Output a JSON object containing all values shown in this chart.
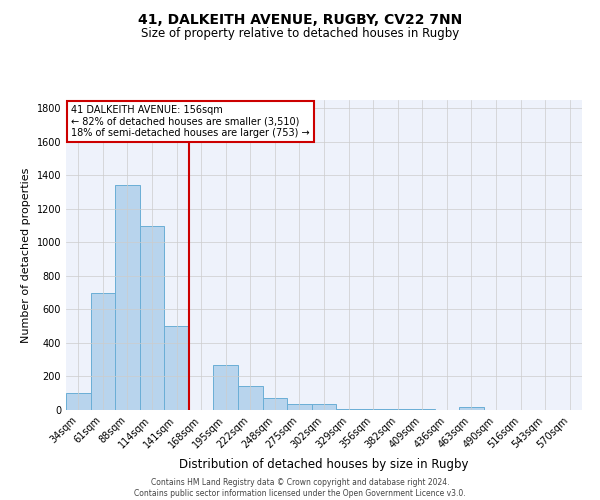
{
  "title1": "41, DALKEITH AVENUE, RUGBY, CV22 7NN",
  "title2": "Size of property relative to detached houses in Rugby",
  "xlabel": "Distribution of detached houses by size in Rugby",
  "ylabel": "Number of detached properties",
  "categories": [
    "34sqm",
    "61sqm",
    "88sqm",
    "114sqm",
    "141sqm",
    "168sqm",
    "195sqm",
    "222sqm",
    "248sqm",
    "275sqm",
    "302sqm",
    "329sqm",
    "356sqm",
    "382sqm",
    "409sqm",
    "436sqm",
    "463sqm",
    "490sqm",
    "516sqm",
    "543sqm",
    "570sqm"
  ],
  "values": [
    100,
    700,
    1340,
    1100,
    500,
    0,
    270,
    143,
    70,
    35,
    35,
    8,
    5,
    5,
    5,
    0,
    15,
    0,
    0,
    0,
    0
  ],
  "bar_color": "#b8d4ed",
  "bar_edge_color": "#6aaed6",
  "vline_color": "#cc0000",
  "vline_xindex": 4.5,
  "ylim": [
    0,
    1850
  ],
  "yticks": [
    0,
    200,
    400,
    600,
    800,
    1000,
    1200,
    1400,
    1600,
    1800
  ],
  "annotation_title": "41 DALKEITH AVENUE: 156sqm",
  "annotation_line1": "← 82% of detached houses are smaller (3,510)",
  "annotation_line2": "18% of semi-detached houses are larger (753) →",
  "annotation_box_color": "#ffffff",
  "annotation_box_edge": "#cc0000",
  "bg_color": "#eef2fb",
  "grid_color": "#cccccc",
  "footer1": "Contains HM Land Registry data © Crown copyright and database right 2024.",
  "footer2": "Contains public sector information licensed under the Open Government Licence v3.0."
}
